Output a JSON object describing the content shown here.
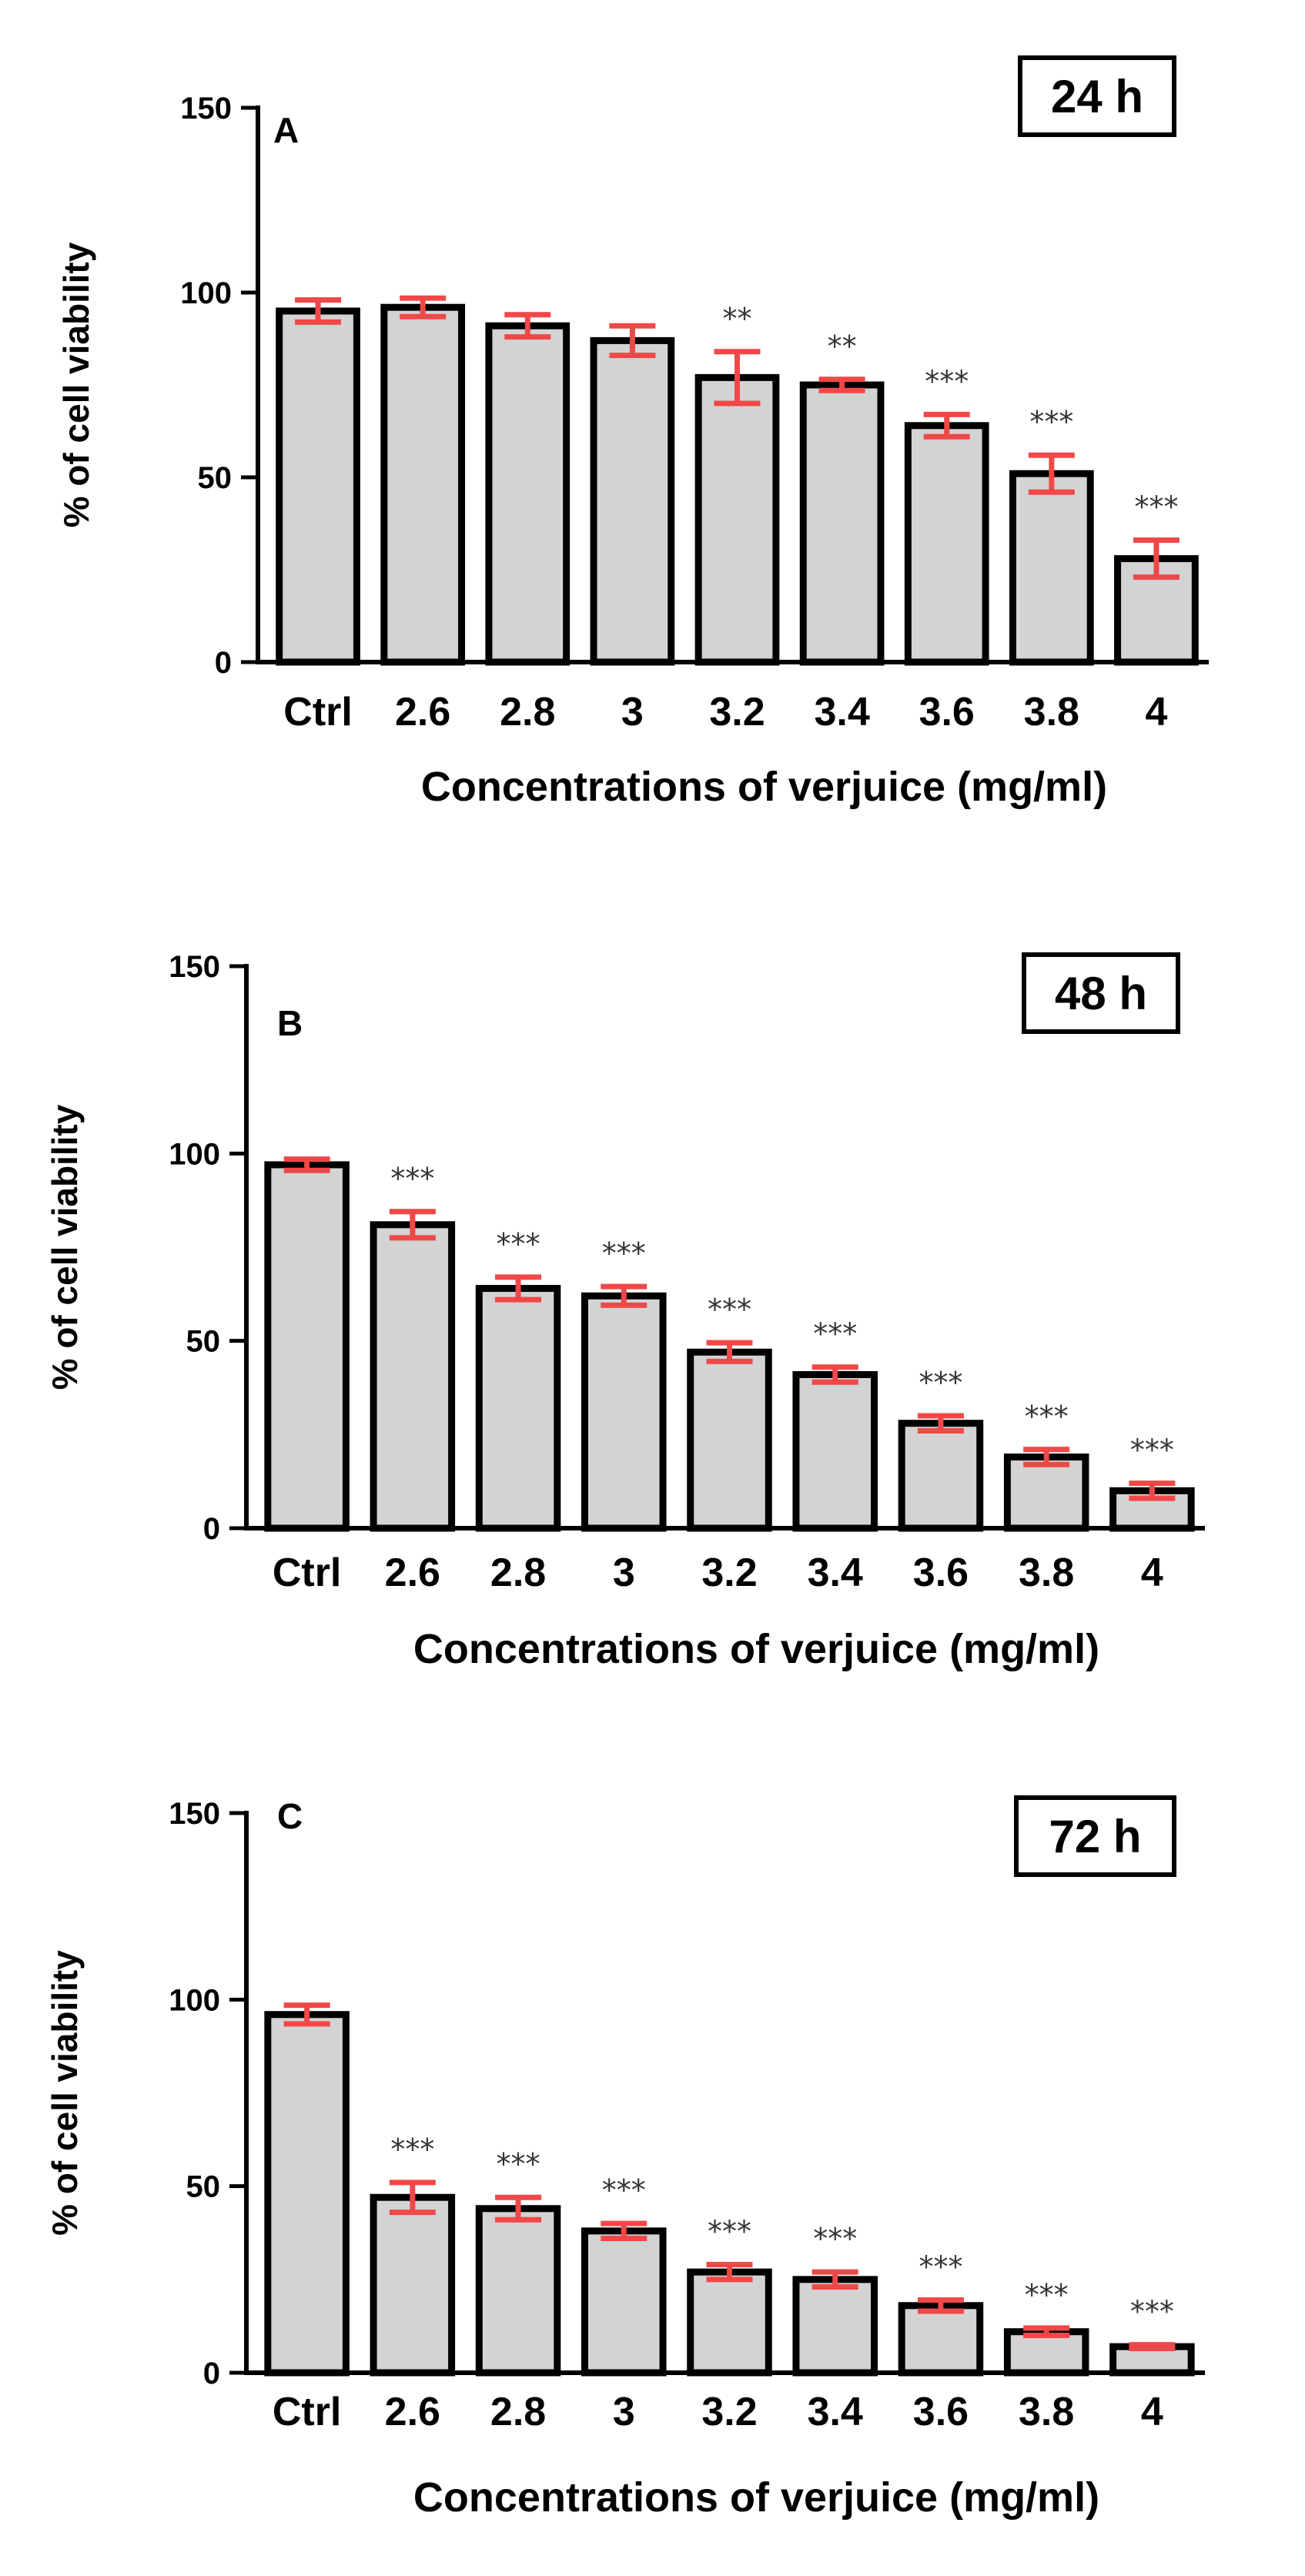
{
  "colors": {
    "bar_fill": "#d3d3d3",
    "bar_stroke": "#000000",
    "error_bar": "#f04848",
    "significance": "#333333"
  },
  "chart_data": [
    {
      "type": "bar",
      "panel": "A",
      "time_label": "24 h",
      "ylabel": "% of cell viability",
      "xlabel": "Concentrations of verjuice (mg/ml)",
      "ylim": [
        0,
        150
      ],
      "yticks": [
        0,
        50,
        100,
        150
      ],
      "categories": [
        "Ctrl",
        "2.6",
        "2.8",
        "3",
        "3.2",
        "3.4",
        "3.6",
        "3.8",
        "4"
      ],
      "values": [
        95,
        96,
        91,
        87,
        77,
        75,
        64,
        51,
        28
      ],
      "errors": [
        3,
        2.5,
        3,
        4,
        7,
        1.5,
        3,
        5,
        5
      ],
      "significance": [
        "",
        "",
        "",
        "",
        "**",
        "**",
        "***",
        "***",
        "***"
      ]
    },
    {
      "type": "bar",
      "panel": "B",
      "time_label": "48 h",
      "ylabel": "% of cell viability",
      "xlabel": "Concentrations of verjuice (mg/ml)",
      "ylim": [
        0,
        150
      ],
      "yticks": [
        0,
        50,
        100,
        150
      ],
      "categories": [
        "Ctrl",
        "2.6",
        "2.8",
        "3",
        "3.2",
        "3.4",
        "3.6",
        "3.8",
        "4"
      ],
      "values": [
        97,
        81,
        64,
        62,
        47,
        41,
        28,
        19,
        10
      ],
      "errors": [
        1.5,
        3.5,
        3,
        2.5,
        2.5,
        2,
        2,
        2,
        2
      ],
      "significance": [
        "",
        "***",
        "***",
        "***",
        "***",
        "***",
        "***",
        "***",
        "***"
      ]
    },
    {
      "type": "bar",
      "panel": "C",
      "time_label": "72 h",
      "ylabel": "% of cell viability",
      "xlabel": "Concentrations of verjuice (mg/ml)",
      "ylim": [
        0,
        150
      ],
      "yticks": [
        0,
        50,
        100,
        150
      ],
      "categories": [
        "Ctrl",
        "2.6",
        "2.8",
        "3",
        "3.2",
        "3.4",
        "3.6",
        "3.8",
        "4"
      ],
      "values": [
        96,
        47,
        44,
        38,
        27,
        25,
        18,
        11,
        7
      ],
      "errors": [
        2.5,
        4,
        3,
        2,
        2,
        2,
        1.5,
        1,
        0.5
      ],
      "significance": [
        "",
        "***",
        "***",
        "***",
        "***",
        "***",
        "***",
        "***",
        "***"
      ]
    }
  ]
}
